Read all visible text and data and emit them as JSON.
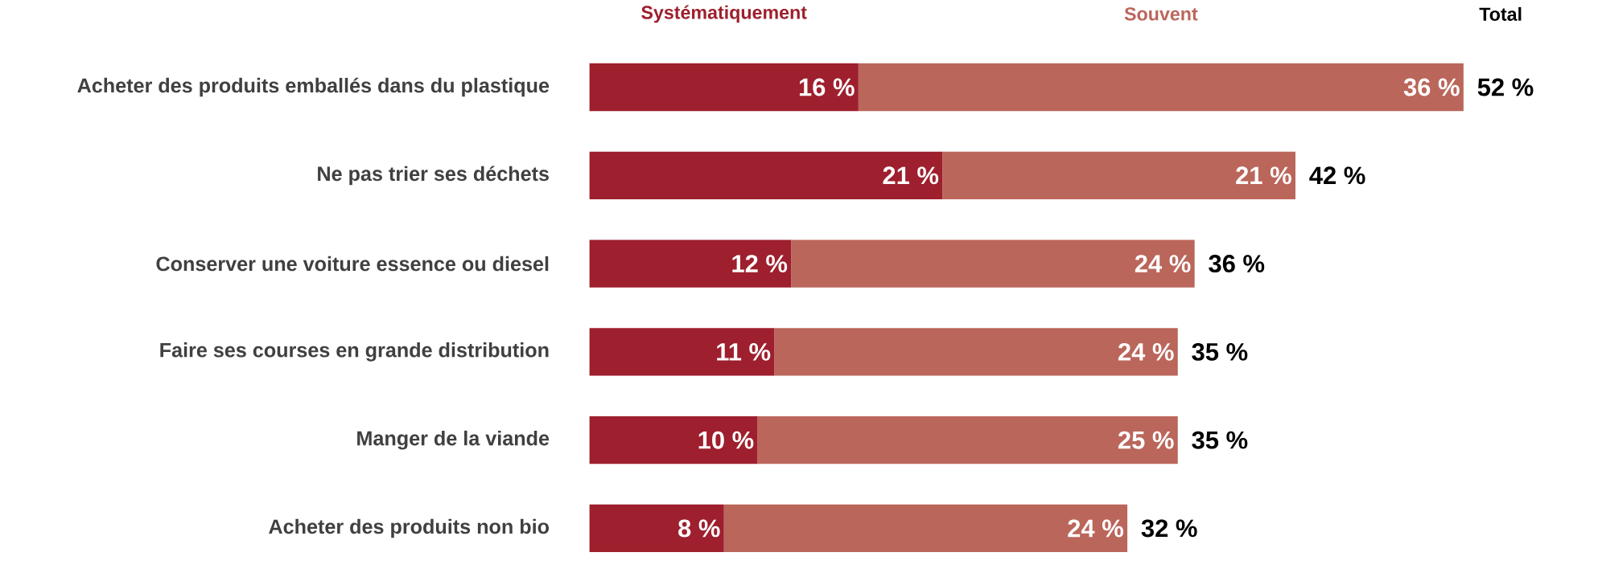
{
  "chart_data": {
    "type": "bar",
    "orientation": "horizontal",
    "stacked": true,
    "legend": "top",
    "categories": [
      "Acheter des produits emballés dans du plastique",
      "Ne pas trier ses déchets",
      "Conserver une voiture essence ou diesel",
      "Faire ses courses en grande distribution",
      "Manger de la viande",
      "Acheter des produits non bio"
    ],
    "series": [
      {
        "name": "Systématiquement",
        "color": "#9e1f2d",
        "values": [
          16,
          21,
          12,
          11,
          10,
          8
        ],
        "value_labels": [
          "16 %",
          "21 %",
          "12 %",
          "11 %",
          "10 %",
          "8 %"
        ]
      },
      {
        "name": "Souvent",
        "color": "#bb665b",
        "values": [
          36,
          21,
          24,
          24,
          25,
          24
        ],
        "value_labels": [
          "36 %",
          "21 %",
          "24 %",
          "24 %",
          "25 %",
          "24 %"
        ]
      }
    ],
    "totals": [
      "52 %",
      "42 %",
      "36 %",
      "35 %",
      "35 %",
      "32 %"
    ],
    "annotations": [
      "Total"
    ]
  }
}
